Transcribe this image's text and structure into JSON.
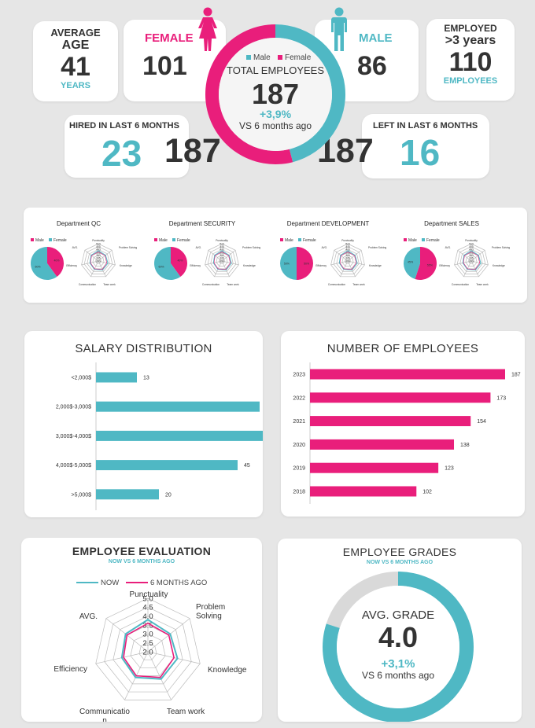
{
  "colors": {
    "teal": "#4fb8c4",
    "pink": "#e91e7b",
    "dark": "#333333",
    "grey": "#d9d9d9"
  },
  "kpis": {
    "avg_age": {
      "line1": "AVERAGE",
      "line2": "AGE",
      "value": "41",
      "unit": "YEARS"
    },
    "female": {
      "label": "FEMALE",
      "value": "101",
      "icon": "female-person-icon"
    },
    "male": {
      "label": "MALE",
      "value": "86",
      "icon": "male-person-icon"
    },
    "employed": {
      "line1": "EMPLOYED",
      "line2": ">3 years",
      "value": "110",
      "unit": "EMPLOYEES"
    },
    "total": {
      "legend_male": "Male",
      "legend_female": "Female",
      "label": "TOTAL EMPLOYEES",
      "value": "187",
      "change": "+3,9%",
      "compare": "VS 6 months ago"
    },
    "hired": {
      "label": "HIRED IN LAST 6 MONTHS",
      "value": "23",
      "total": "187"
    },
    "left": {
      "label": "LEFT IN LAST 6 MONTHS",
      "value": "16",
      "total": "187"
    }
  },
  "departments": {
    "legend_male": "Male",
    "legend_female": "Female",
    "radar_labels": [
      "Punctuality",
      "Problem Solving",
      "Knowledge",
      "Team work",
      "Communication",
      "Efficiency",
      "AVG."
    ],
    "radar_ticks": [
      "5.0",
      "4.5",
      "4.0",
      "3.5",
      "3.0",
      "2.5",
      "2.0"
    ],
    "items": [
      {
        "title": "Department QC",
        "male_pct": 0.6,
        "female_pct": 0.4,
        "male_label": "60%",
        "female_label": "40%"
      },
      {
        "title": "Department SECURITY",
        "male_pct": 0.6,
        "female_pct": 0.4,
        "male_label": "60%",
        "female_label": "40%"
      },
      {
        "title": "Department DEVELOPMENT",
        "male_pct": 0.5,
        "female_pct": 0.5,
        "male_label": "50%",
        "female_label": "50%"
      },
      {
        "title": "Department SALES",
        "male_pct": 0.45,
        "female_pct": 0.55,
        "male_label": "45%",
        "female_label": "55%"
      }
    ]
  },
  "chart_data": [
    {
      "type": "bar",
      "orientation": "horizontal",
      "title": "SALARY DISTRIBUTION",
      "categories": [
        "<2,000$",
        "2,000$-3,000$",
        "3,000$-4,000$",
        "4,000$-5,000$",
        ">5,000$"
      ],
      "values": [
        13,
        52,
        57,
        45,
        20
      ],
      "xlim": [
        0,
        57
      ],
      "color": "#4fb8c4"
    },
    {
      "type": "bar",
      "orientation": "horizontal",
      "title": "NUMBER OF EMPLOYEES",
      "categories": [
        "2023",
        "2022",
        "2021",
        "2020",
        "2019",
        "2018"
      ],
      "values": [
        187,
        173,
        154,
        138,
        123,
        102
      ],
      "xlim": [
        0,
        187
      ],
      "color": "#e91e7b"
    },
    {
      "type": "radar",
      "title": "EMPLOYEE EVALUATION",
      "subtitle": "NOW VS 6 MONTHS AGO",
      "axes": [
        "Punctuality",
        "Problem Solving",
        "Knowledge",
        "Team work",
        "Communication",
        "Efficiency",
        "AVG."
      ],
      "ticks": [
        "5.0",
        "4.5",
        "4.0",
        "3.5",
        "3.0",
        "2.5",
        "2.0"
      ],
      "rlim": [
        2.0,
        5.0
      ],
      "series": [
        {
          "name": "NOW",
          "values": [
            3.8,
            3.6,
            3.7,
            3.7,
            3.6,
            3.5,
            3.6
          ],
          "color": "#4fb8c4"
        },
        {
          "name": "6 MONTHS AGO",
          "values": [
            3.6,
            3.5,
            3.5,
            3.6,
            3.5,
            3.4,
            3.5
          ],
          "color": "#e91e7b"
        }
      ]
    },
    {
      "type": "pie",
      "title": "EMPLOYEE GRADES",
      "subtitle": "NOW VS 6 MONTHS AGO",
      "center_label": "AVG. GRADE",
      "center_value": "4.0",
      "change": "+3,1%",
      "compare": "VS 6 months ago",
      "filled_fraction": 0.8,
      "colors": [
        "#4fb8c4",
        "#d9d9d9"
      ]
    }
  ]
}
